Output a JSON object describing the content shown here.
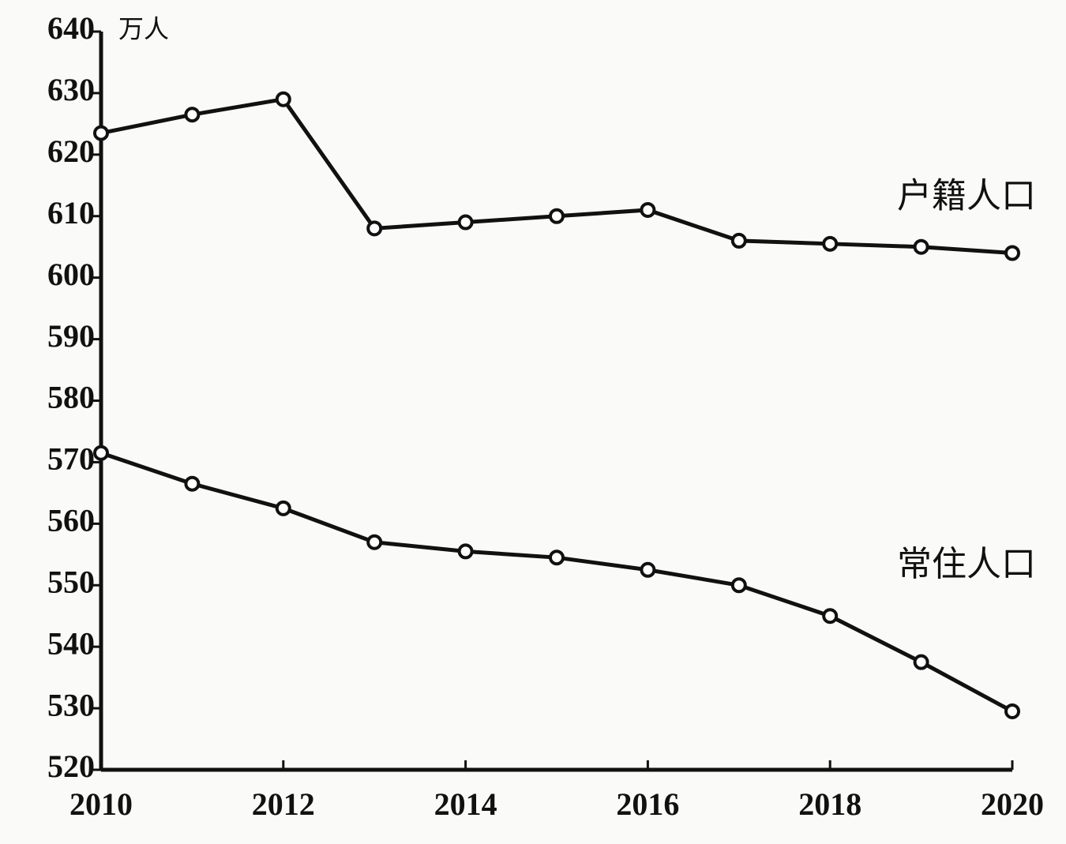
{
  "chart_data": {
    "type": "line",
    "y_label": "万人",
    "x": [
      2010,
      2011,
      2012,
      2013,
      2014,
      2015,
      2016,
      2017,
      2018,
      2019,
      2020
    ],
    "series": [
      {
        "name": "户籍人口",
        "color": "#111111",
        "values": [
          623.5,
          626.5,
          629,
          608,
          609,
          610,
          611,
          606,
          605.5,
          605,
          604
        ]
      },
      {
        "name": "常住人口",
        "color": "#111111",
        "values": [
          571.5,
          566.5,
          562.5,
          557,
          555.5,
          554.5,
          552.5,
          550,
          545,
          537.5,
          529.5
        ]
      }
    ],
    "xlim": [
      2010,
      2020
    ],
    "xticks": [
      2010,
      2012,
      2014,
      2016,
      2018,
      2020
    ],
    "ylim": [
      520,
      640
    ],
    "yticks": [
      520,
      530,
      540,
      550,
      560,
      570,
      580,
      590,
      600,
      610,
      620,
      630,
      640
    ],
    "grid": false
  }
}
